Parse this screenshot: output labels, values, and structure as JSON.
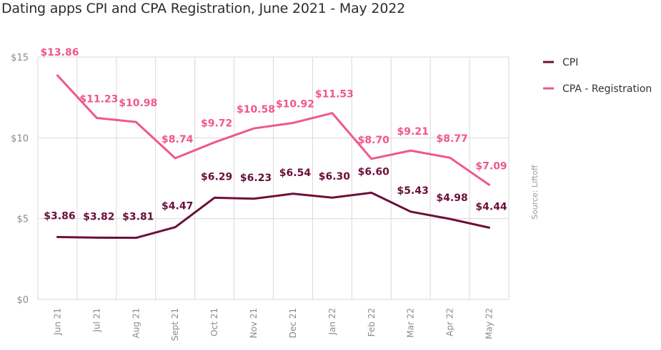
{
  "title": "Dating apps CPI and CPA Registration, June 2021 - May 2022",
  "source": "Source: Liftoff",
  "colors": {
    "cpi": "#6b0f3a",
    "cpa": "#f0578c",
    "grid": "#d9d9d9"
  },
  "chart_data": {
    "type": "line",
    "title": "Dating apps CPI and CPA Registration, June 2021 - May 2022",
    "categories": [
      "Jun 21",
      "Jul 21",
      "Aug 21",
      "Sept 21",
      "Oct 21",
      "Nov 21",
      "Dec 21",
      "Jan 22",
      "Feb 22",
      "Mar 22",
      "Apr 22",
      "May 22"
    ],
    "series": [
      {
        "name": "CPI",
        "values": [
          3.86,
          3.82,
          3.81,
          4.47,
          6.29,
          6.23,
          6.54,
          6.3,
          6.6,
          5.43,
          4.98,
          4.44
        ],
        "labels": [
          "$3.86",
          "$3.82",
          "$3.81",
          "$4.47",
          "$6.29",
          "$6.23",
          "$6.54",
          "$6.30",
          "$6.60",
          "$5.43",
          "$4.98",
          "$4.44"
        ]
      },
      {
        "name": "CPA - Registration",
        "values": [
          13.86,
          11.23,
          10.98,
          8.74,
          9.72,
          10.58,
          10.92,
          11.53,
          8.7,
          9.21,
          8.77,
          7.09
        ],
        "labels": [
          "$13.86",
          "$11.23",
          "$10.98",
          "$8.74",
          "$9.72",
          "$10.58",
          "$10.92",
          "$11.53",
          "$8.70",
          "$9.21",
          "$8.77",
          "$7.09"
        ]
      }
    ],
    "yticks": [
      0,
      5,
      10,
      15
    ],
    "ytick_labels": [
      "$0",
      "$5",
      "$10",
      "$15"
    ],
    "ylim": [
      0,
      15
    ],
    "xlabel": "",
    "ylabel": "",
    "grid": true,
    "legend": "top-right"
  }
}
